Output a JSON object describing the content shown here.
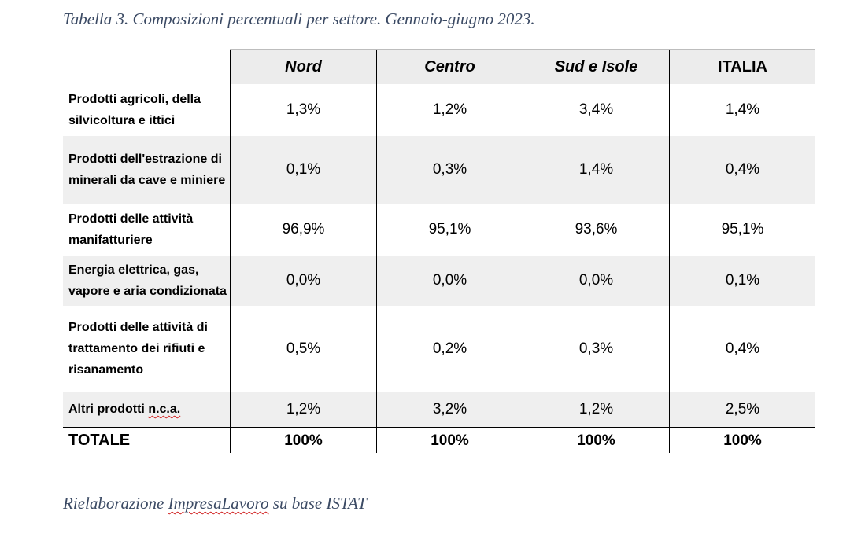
{
  "caption": "Tabella 3. Composizioni percentuali per settore. Gennaio-giugno 2023.",
  "source": {
    "prefix": "Rielaborazione ",
    "underlined": "ImpresaLavoro",
    "suffix": " su base ISTAT"
  },
  "table": {
    "columns": [
      "Nord",
      "Centro",
      "Sud e Isole",
      "ITALIA"
    ],
    "rows": [
      {
        "label_lines": [
          "Prodotti agricoli, della",
          "silvicoltura e ittici"
        ],
        "values": [
          "1,3%",
          "1,2%",
          "3,4%",
          "1,4%"
        ]
      },
      {
        "label_lines": [
          "Prodotti dell'estrazione di",
          "minerali da cave e miniere"
        ],
        "values": [
          "0,1%",
          "0,3%",
          "1,4%",
          "0,4%"
        ]
      },
      {
        "label_lines": [
          "Prodotti delle attività",
          "manifatturiere"
        ],
        "values": [
          "96,9%",
          "95,1%",
          "93,6%",
          "95,1%"
        ]
      },
      {
        "label_lines": [
          "Energia elettrica, gas,",
          "vapore e aria condizionata"
        ],
        "values": [
          "0,0%",
          "0,0%",
          "0,0%",
          "0,1%"
        ]
      },
      {
        "label_lines": [
          "Prodotti delle attività di",
          "trattamento dei rifiuti e",
          "risanamento"
        ],
        "values": [
          "0,5%",
          "0,2%",
          "0,3%",
          "0,4%"
        ]
      },
      {
        "label_prefix": "Altri prodotti ",
        "label_underlined": "n.c.a.",
        "values": [
          "1,2%",
          "3,2%",
          "1,2%",
          "2,5%"
        ]
      }
    ],
    "total": {
      "label": "TOTALE",
      "values": [
        "100%",
        "100%",
        "100%",
        "100%"
      ]
    }
  }
}
